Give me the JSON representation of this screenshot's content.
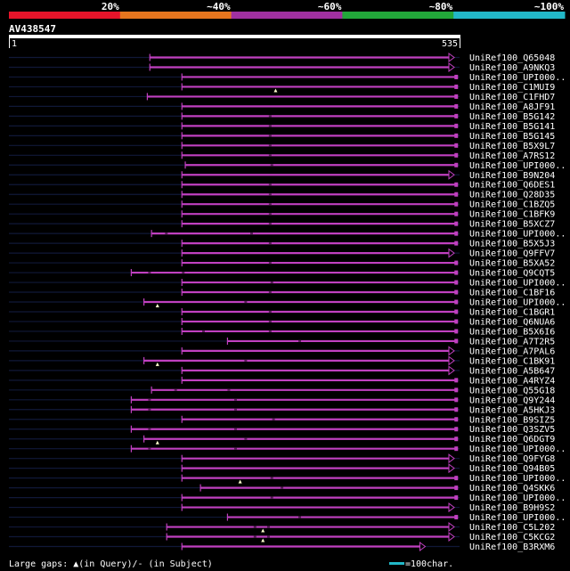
{
  "scale": {
    "labels": [
      "20%",
      "~40%",
      "~60%",
      "~80%",
      "~100%"
    ],
    "colors": [
      "#e8142a",
      "#e8761e",
      "#a030a0",
      "#22a83a",
      "#22b8c8"
    ]
  },
  "query": {
    "id": "AV438547",
    "start": "1",
    "end": "535",
    "length": 535
  },
  "colors": {
    "line": "#c040c0",
    "faint_line": "#101838",
    "marker": "#ffffcc",
    "background": "#000000",
    "text": "#ffffff"
  },
  "hits": [
    {
      "label": "UniRef100_Q65048",
      "start": 168,
      "end": 535,
      "q": [],
      "s": [],
      "tail": "arrow"
    },
    {
      "label": "UniRef100_A9NKQ3",
      "start": 168,
      "end": 535,
      "q": [],
      "s": [],
      "tail": "arrow"
    },
    {
      "label": "UniRef100_UPI000..",
      "start": 206,
      "end": 530,
      "q": [],
      "s": [],
      "tail": "square"
    },
    {
      "label": "UniRef100_C1MUI9",
      "start": 206,
      "end": 530,
      "q": [
        317
      ],
      "s": [],
      "tail": "square"
    },
    {
      "label": "UniRef100_C1FHD7",
      "start": 165,
      "end": 530,
      "q": [],
      "s": [],
      "tail": "square"
    },
    {
      "label": "UniRef100_A8JF91",
      "start": 206,
      "end": 530,
      "q": [],
      "s": [],
      "tail": "square"
    },
    {
      "label": "UniRef100_B5G142",
      "start": 206,
      "end": 530,
      "q": [],
      "s": [
        309
      ],
      "tail": "square"
    },
    {
      "label": "UniRef100_B5G141",
      "start": 206,
      "end": 530,
      "q": [],
      "s": [
        309
      ],
      "tail": "square"
    },
    {
      "label": "UniRef100_B5G145",
      "start": 206,
      "end": 530,
      "q": [],
      "s": [
        309
      ],
      "tail": "square"
    },
    {
      "label": "UniRef100_B5X9L7",
      "start": 206,
      "end": 530,
      "q": [],
      "s": [
        309
      ],
      "tail": "square"
    },
    {
      "label": "UniRef100_A7RS12",
      "start": 206,
      "end": 530,
      "q": [],
      "s": [
        309
      ],
      "tail": "square"
    },
    {
      "label": "UniRef100_UPI000..",
      "start": 210,
      "end": 530,
      "q": [],
      "s": [
        311
      ],
      "tail": "square"
    },
    {
      "label": "UniRef100_B9N204",
      "start": 206,
      "end": 535,
      "q": [],
      "s": [],
      "tail": "arrow"
    },
    {
      "label": "UniRef100_Q6DES1",
      "start": 206,
      "end": 530,
      "q": [],
      "s": [
        309
      ],
      "tail": "square"
    },
    {
      "label": "UniRef100_Q28D35",
      "start": 206,
      "end": 530,
      "q": [],
      "s": [
        309
      ],
      "tail": "square"
    },
    {
      "label": "UniRef100_C1BZQ5",
      "start": 206,
      "end": 530,
      "q": [],
      "s": [
        309
      ],
      "tail": "square"
    },
    {
      "label": "UniRef100_C1BFK9",
      "start": 206,
      "end": 530,
      "q": [],
      "s": [
        309
      ],
      "tail": "square"
    },
    {
      "label": "UniRef100_B5XCZ7",
      "start": 206,
      "end": 530,
      "q": [],
      "s": [
        309
      ],
      "tail": "square"
    },
    {
      "label": "UniRef100_UPI000..",
      "start": 170,
      "end": 530,
      "q": [],
      "s": [
        186,
        287
      ],
      "tail": "square"
    },
    {
      "label": "UniRef100_B5X5J3",
      "start": 206,
      "end": 530,
      "q": [],
      "s": [
        309
      ],
      "tail": "square"
    },
    {
      "label": "UniRef100_Q9FFV7",
      "start": 206,
      "end": 535,
      "q": [],
      "s": [],
      "tail": "arrow"
    },
    {
      "label": "UniRef100_B5XA52",
      "start": 206,
      "end": 530,
      "q": [],
      "s": [
        309
      ],
      "tail": "square"
    },
    {
      "label": "UniRef100_Q9CQT5",
      "start": 146,
      "end": 530,
      "q": [],
      "s": [
        166,
        206
      ],
      "tail": "square"
    },
    {
      "label": "UniRef100_UPI000..",
      "start": 206,
      "end": 530,
      "q": [],
      "s": [
        311
      ],
      "tail": "square"
    },
    {
      "label": "UniRef100_C1BF16",
      "start": 206,
      "end": 530,
      "q": [],
      "s": [
        309
      ],
      "tail": "square"
    },
    {
      "label": "UniRef100_UPI000..",
      "start": 161,
      "end": 530,
      "q": [
        177
      ],
      "s": [
        280
      ],
      "tail": "square"
    },
    {
      "label": "UniRef100_C1BGR1",
      "start": 206,
      "end": 530,
      "q": [],
      "s": [
        309
      ],
      "tail": "square"
    },
    {
      "label": "UniRef100_Q6NUA6",
      "start": 206,
      "end": 530,
      "q": [],
      "s": [
        309
      ],
      "tail": "square"
    },
    {
      "label": "UniRef100_B5X6I6",
      "start": 206,
      "end": 530,
      "q": [],
      "s": [
        230,
        309
      ],
      "tail": "square"
    },
    {
      "label": "UniRef100_A7T2R5",
      "start": 260,
      "end": 530,
      "q": [],
      "s": [
        344
      ],
      "tail": "square"
    },
    {
      "label": "UniRef100_A7PAL6",
      "start": 206,
      "end": 535,
      "q": [],
      "s": [],
      "tail": "arrow"
    },
    {
      "label": "UniRef100_C1BK91",
      "start": 161,
      "end": 530,
      "q": [
        177
      ],
      "s": [
        280
      ],
      "tail": "arrow"
    },
    {
      "label": "UniRef100_A5B647",
      "start": 206,
      "end": 535,
      "q": [],
      "s": [],
      "tail": "arrow"
    },
    {
      "label": "UniRef100_A4RYZ4",
      "start": 206,
      "end": 530,
      "q": [],
      "s": [],
      "tail": "square"
    },
    {
      "label": "UniRef100_Q55G18",
      "start": 170,
      "end": 530,
      "q": [],
      "s": [
        197,
        260
      ],
      "tail": "square"
    },
    {
      "label": "UniRef100_Q9Y244",
      "start": 146,
      "end": 530,
      "q": [],
      "s": [
        166,
        268
      ],
      "tail": "square"
    },
    {
      "label": "UniRef100_A5HKJ3",
      "start": 146,
      "end": 530,
      "q": [],
      "s": [
        166,
        268
      ],
      "tail": "square"
    },
    {
      "label": "UniRef100_B9SIZ5",
      "start": 206,
      "end": 530,
      "q": [],
      "s": [
        313
      ],
      "tail": "square"
    },
    {
      "label": "UniRef100_Q3SZV5",
      "start": 146,
      "end": 530,
      "q": [],
      "s": [
        166,
        268
      ],
      "tail": "square"
    },
    {
      "label": "UniRef100_Q6DGT9",
      "start": 161,
      "end": 530,
      "q": [
        177
      ],
      "s": [
        280
      ],
      "tail": "square"
    },
    {
      "label": "UniRef100_UPI000..",
      "start": 146,
      "end": 530,
      "q": [],
      "s": [
        166,
        268
      ],
      "tail": "square"
    },
    {
      "label": "UniRef100_Q9FYG8",
      "start": 206,
      "end": 535,
      "q": [],
      "s": [],
      "tail": "arrow"
    },
    {
      "label": "UniRef100_Q94B05",
      "start": 206,
      "end": 535,
      "q": [],
      "s": [],
      "tail": "arrow"
    },
    {
      "label": "UniRef100_UPI000..",
      "start": 206,
      "end": 530,
      "q": [
        275
      ],
      "s": [
        311
      ],
      "tail": "square"
    },
    {
      "label": "UniRef100_Q4SKK6",
      "start": 228,
      "end": 530,
      "q": [],
      "s": [
        323
      ],
      "tail": "square"
    },
    {
      "label": "UniRef100_UPI000..",
      "start": 206,
      "end": 530,
      "q": [],
      "s": [
        311
      ],
      "tail": "square"
    },
    {
      "label": "UniRef100_B9H9S2",
      "start": 206,
      "end": 535,
      "q": [],
      "s": [],
      "tail": "arrow"
    },
    {
      "label": "UniRef100_UPI000..",
      "start": 260,
      "end": 530,
      "q": [],
      "s": [
        344
      ],
      "tail": "square"
    },
    {
      "label": "UniRef100_C5L202",
      "start": 188,
      "end": 535,
      "q": [
        302
      ],
      "s": [
        291,
        307
      ],
      "tail": "arrow"
    },
    {
      "label": "UniRef100_C5KCG2",
      "start": 188,
      "end": 535,
      "q": [
        302
      ],
      "s": [
        291,
        307
      ],
      "tail": "arrow"
    },
    {
      "label": "UniRef100_B3RXM6",
      "start": 206,
      "end": 488,
      "q": [],
      "s": [],
      "tail": "arrow"
    }
  ],
  "footer": {
    "legend": "Large gaps: ▲(in Query)/- (in Subject)",
    "scale_text": "=100char.",
    "scale_color": "#22b8c8"
  }
}
